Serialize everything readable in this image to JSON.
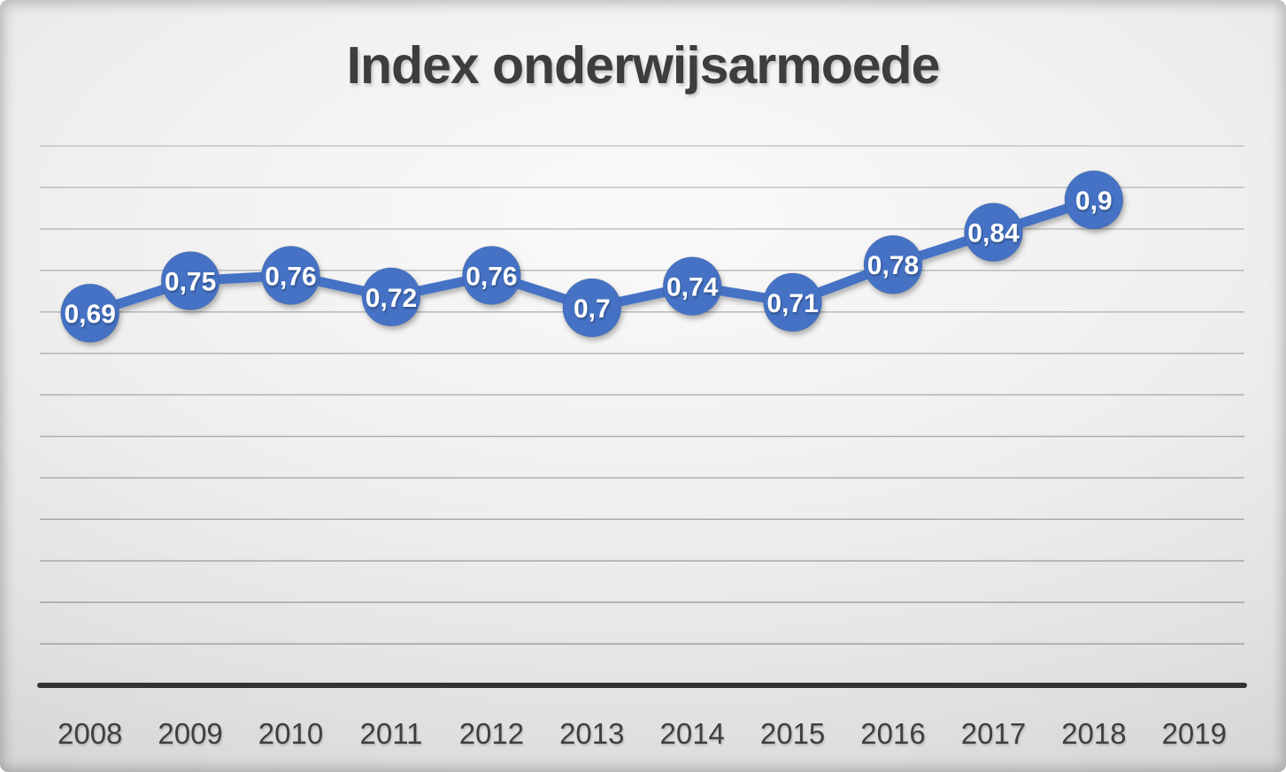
{
  "title": "Index onderwijsarmoede",
  "chart_data": {
    "type": "line",
    "title": "Index onderwijsarmoede",
    "categories": [
      "2008",
      "2009",
      "2010",
      "2011",
      "2012",
      "2013",
      "2014",
      "2015",
      "2016",
      "2017",
      "2018",
      "2019"
    ],
    "series": [
      {
        "name": "Index onderwijsarmoede",
        "values": [
          0.69,
          0.75,
          0.76,
          0.72,
          0.76,
          0.7,
          0.74,
          0.71,
          0.78,
          0.84,
          0.9,
          null
        ],
        "point_labels": [
          "0,69",
          "0,75",
          "0,76",
          "0,72",
          "0,76",
          "0,7",
          "0,74",
          "0,71",
          "0,78",
          "0,84",
          "0,9",
          null
        ]
      }
    ],
    "xlabel": "",
    "ylabel": "",
    "ylim": [
      0,
      1.0
    ],
    "y_axis_labels_visible": false,
    "gridlines": "horizontal",
    "legend": "none",
    "colors": {
      "line": "#4472C4",
      "marker": "#4472C4",
      "point_label_text": "#FFFFFF",
      "axis_line": "#333333",
      "gridline": "#9e9e9e",
      "tick_text": "#3f3f3f",
      "title_text": "#3d3d3d"
    }
  }
}
